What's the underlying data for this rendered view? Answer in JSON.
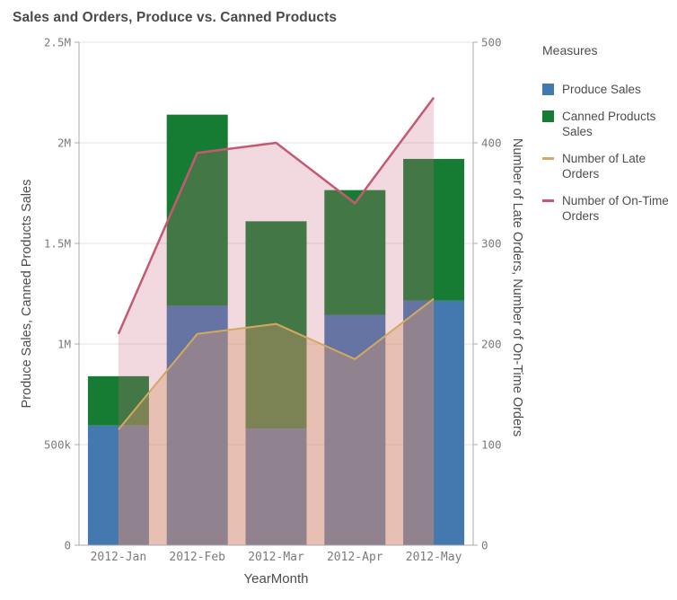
{
  "title": "Sales and Orders, Produce vs. Canned Products",
  "styles": {
    "background": "#ffffff",
    "title_color": "#4a4a4a",
    "tick_color": "#7b7b7b",
    "axis_title_color": "#4d4d4d",
    "grid_color": "#e1e1e1",
    "axis_line_color": "#a9a9a9"
  },
  "chart_data": {
    "type": "bar",
    "subtype": "stacked-bars-with-area-lines",
    "categories": [
      "2012-Jan",
      "2012-Feb",
      "2012-Mar",
      "2012-Apr",
      "2012-May"
    ],
    "xlabel": "YearMonth",
    "grid": true,
    "bar_mode": "stacked",
    "left_axis": {
      "label": "Produce Sales, Canned Products Sales",
      "range": [
        0,
        2500000
      ],
      "tick_values": [
        0,
        500000,
        1000000,
        1500000,
        2000000,
        2500000
      ],
      "tick_labels": [
        "0",
        "500k",
        "1M",
        "1.5M",
        "2M",
        "2.5M"
      ]
    },
    "right_axis": {
      "label": "Number of Late Orders, Number of On-Time Orders",
      "range": [
        0,
        500
      ],
      "tick_values": [
        0,
        100,
        200,
        300,
        400,
        500
      ],
      "tick_labels": [
        "0",
        "100",
        "200",
        "300",
        "400",
        "500"
      ]
    },
    "series": [
      {
        "name": "Produce Sales",
        "type": "bar",
        "axis": "left",
        "color": "#4379ae",
        "values": [
          595000,
          1190000,
          580000,
          1145000,
          1215000
        ]
      },
      {
        "name": "Canned Products Sales",
        "type": "bar",
        "axis": "left",
        "color": "#177c33",
        "values": [
          245000,
          950000,
          1030000,
          620000,
          705000
        ]
      },
      {
        "name": "Number of Late Orders",
        "type": "line-area",
        "axis": "right",
        "color": "#d3a95f",
        "fill": "#d9a866",
        "fill_opacity": 0.38,
        "values": [
          115,
          210,
          220,
          185,
          245
        ]
      },
      {
        "name": "Number of On-Time Orders",
        "type": "line-area",
        "axis": "right",
        "color": "#c45a72",
        "fill": "#cc6680",
        "fill_opacity": 0.25,
        "values": [
          210,
          390,
          400,
          340,
          445
        ]
      }
    ],
    "legend": {
      "title": "Measures",
      "position": "right"
    }
  }
}
